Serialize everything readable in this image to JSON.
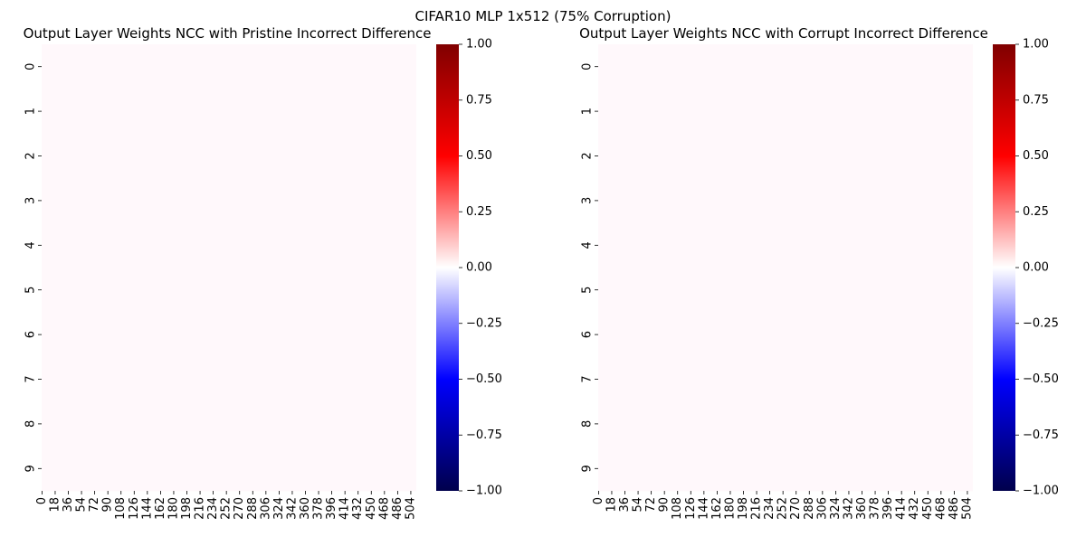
{
  "figure": {
    "suptitle": "CIFAR10 MLP 1x512 (75% Corruption)"
  },
  "chart_data": [
    {
      "type": "heatmap",
      "title": "Output Layer Weights NCC with Pristine Incorrect Difference",
      "xlabel": "",
      "ylabel": "",
      "n_rows": 10,
      "n_cols": 512,
      "y_ticks": [
        "0",
        "1",
        "2",
        "3",
        "4",
        "5",
        "6",
        "7",
        "8",
        "9"
      ],
      "x_ticks": [
        "0",
        "18",
        "36",
        "54",
        "72",
        "90",
        "108",
        "126",
        "144",
        "162",
        "180",
        "198",
        "216",
        "234",
        "252",
        "270",
        "288",
        "306",
        "324",
        "342",
        "360",
        "378",
        "396",
        "414",
        "432",
        "450",
        "468",
        "486",
        "504"
      ],
      "values_note": "all cells ≈ 0",
      "fill_value": 0.0,
      "colormap": "seismic",
      "vmin": -1.0,
      "vmax": 1.0,
      "colorbar_ticks": [
        "1.00",
        "0.75",
        "0.50",
        "0.25",
        "0.00",
        "−0.25",
        "−0.50",
        "−0.75",
        "−1.00"
      ],
      "colors": {
        "max": "#800000",
        "mid": "#fff8fb",
        "min": "#00004c"
      }
    },
    {
      "type": "heatmap",
      "title": "Output Layer Weights NCC with Corrupt Incorrect Difference",
      "xlabel": "",
      "ylabel": "",
      "n_rows": 10,
      "n_cols": 512,
      "y_ticks": [
        "0",
        "1",
        "2",
        "3",
        "4",
        "5",
        "6",
        "7",
        "8",
        "9"
      ],
      "x_ticks": [
        "0",
        "18",
        "36",
        "54",
        "72",
        "90",
        "108",
        "126",
        "144",
        "162",
        "180",
        "198",
        "216",
        "234",
        "252",
        "270",
        "288",
        "306",
        "324",
        "342",
        "360",
        "378",
        "396",
        "414",
        "432",
        "450",
        "468",
        "486",
        "504"
      ],
      "values_note": "all cells ≈ 0",
      "fill_value": 0.0,
      "colormap": "seismic",
      "vmin": -1.0,
      "vmax": 1.0,
      "colorbar_ticks": [
        "1.00",
        "0.75",
        "0.50",
        "0.25",
        "0.00",
        "−0.25",
        "−0.50",
        "−0.75",
        "−1.00"
      ],
      "colors": {
        "max": "#800000",
        "mid": "#fff8fb",
        "min": "#00004c"
      }
    }
  ]
}
